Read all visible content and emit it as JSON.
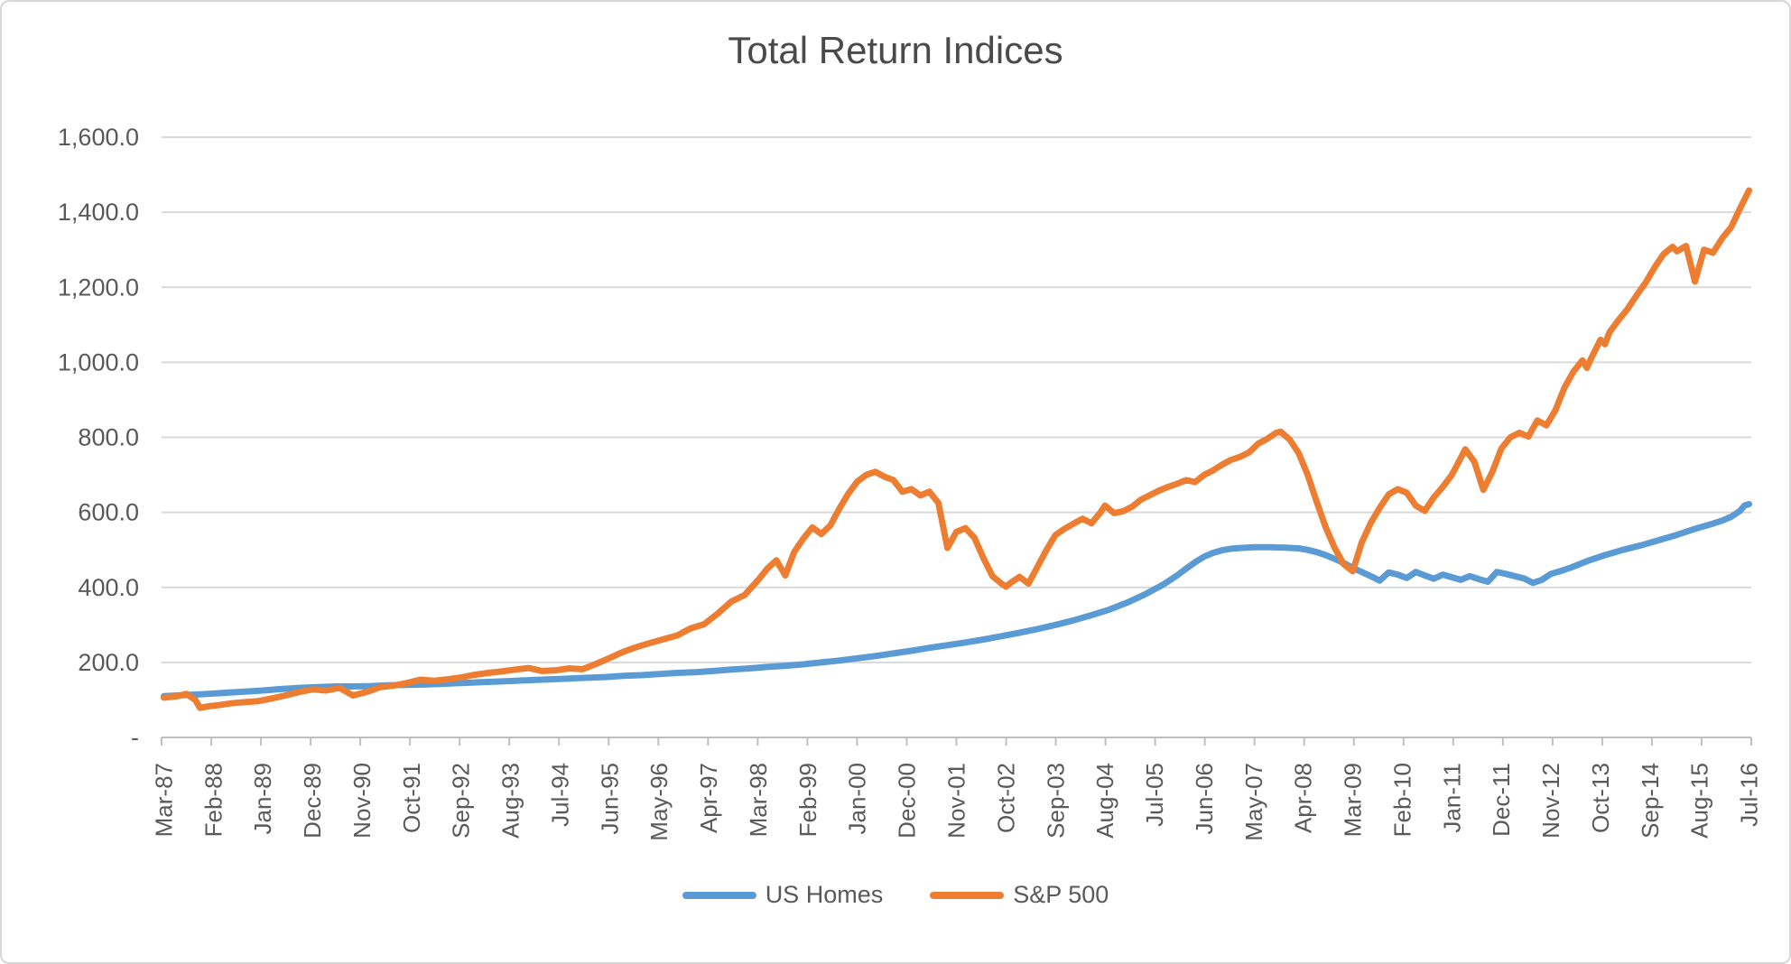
{
  "chart_data": {
    "type": "line",
    "title": "Total Return Indices",
    "legend_position": "bottom",
    "x_axis": {
      "unit": "months since Mar-1987",
      "months_total": 353,
      "tick_interval_months": 11,
      "tick_labels": [
        "Mar-87",
        "Feb-88",
        "Jan-89",
        "Dec-89",
        "Nov-90",
        "Oct-91",
        "Sep-92",
        "Aug-93",
        "Jul-94",
        "Jun-95",
        "May-96",
        "Apr-97",
        "Mar-98",
        "Feb-99",
        "Jan-00",
        "Dec-00",
        "Nov-01",
        "Oct-02",
        "Sep-03",
        "Aug-04",
        "Jul-05",
        "Jun-06",
        "May-07",
        "Apr-08",
        "Mar-09",
        "Feb-10",
        "Jan-11",
        "Dec-11",
        "Nov-12",
        "Oct-13",
        "Sep-14",
        "Aug-15",
        "Jul-16"
      ]
    },
    "y_axis": {
      "min": 0,
      "max": 1600,
      "gridline_step": 200,
      "gridlines": true,
      "tick_labels": [
        "-",
        "200.0",
        "400.0",
        "600.0",
        "800.0",
        "1,000.0",
        "1,200.0",
        "1,400.0",
        "1,600.0"
      ]
    },
    "series": [
      {
        "name": "US Homes",
        "color": "#5B9BD5",
        "points": [
          [
            0,
            110
          ],
          [
            5,
            113
          ],
          [
            8,
            115
          ],
          [
            11,
            117
          ],
          [
            15,
            120
          ],
          [
            18,
            122
          ],
          [
            22,
            125
          ],
          [
            26,
            129
          ],
          [
            30,
            132
          ],
          [
            34,
            134
          ],
          [
            38,
            136
          ],
          [
            42,
            136
          ],
          [
            46,
            137
          ],
          [
            50,
            139
          ],
          [
            54,
            140
          ],
          [
            58,
            141
          ],
          [
            62,
            143
          ],
          [
            66,
            145
          ],
          [
            70,
            147
          ],
          [
            74,
            149
          ],
          [
            78,
            151
          ],
          [
            82,
            153
          ],
          [
            86,
            155
          ],
          [
            90,
            157
          ],
          [
            94,
            159
          ],
          [
            98,
            161
          ],
          [
            102,
            164
          ],
          [
            106,
            166
          ],
          [
            110,
            169
          ],
          [
            114,
            172
          ],
          [
            118,
            174
          ],
          [
            122,
            177
          ],
          [
            126,
            181
          ],
          [
            130,
            184
          ],
          [
            134,
            188
          ],
          [
            138,
            191
          ],
          [
            142,
            195
          ],
          [
            146,
            200
          ],
          [
            150,
            205
          ],
          [
            154,
            211
          ],
          [
            158,
            217
          ],
          [
            162,
            224
          ],
          [
            166,
            231
          ],
          [
            170,
            239
          ],
          [
            174,
            246
          ],
          [
            178,
            253
          ],
          [
            182,
            261
          ],
          [
            186,
            270
          ],
          [
            190,
            279
          ],
          [
            194,
            289
          ],
          [
            198,
            300
          ],
          [
            202,
            312
          ],
          [
            206,
            326
          ],
          [
            210,
            341
          ],
          [
            214,
            360
          ],
          [
            218,
            382
          ],
          [
            222,
            408
          ],
          [
            225,
            432
          ],
          [
            227,
            450
          ],
          [
            229,
            467
          ],
          [
            231,
            482
          ],
          [
            233,
            492
          ],
          [
            235,
            499
          ],
          [
            237,
            503
          ],
          [
            239,
            505
          ],
          [
            242,
            507
          ],
          [
            246,
            507
          ],
          [
            249,
            506
          ],
          [
            252,
            504
          ],
          [
            254,
            500
          ],
          [
            256,
            494
          ],
          [
            258,
            486
          ],
          [
            260,
            476
          ],
          [
            262,
            465
          ],
          [
            264,
            452
          ],
          [
            266,
            441
          ],
          [
            268,
            430
          ],
          [
            270,
            418
          ],
          [
            272,
            440
          ],
          [
            274,
            434
          ],
          [
            276,
            425
          ],
          [
            278,
            441
          ],
          [
            280,
            432
          ],
          [
            282,
            423
          ],
          [
            284,
            434
          ],
          [
            286,
            427
          ],
          [
            288,
            420
          ],
          [
            290,
            430
          ],
          [
            292,
            422
          ],
          [
            294,
            415
          ],
          [
            296,
            441
          ],
          [
            298,
            436
          ],
          [
            300,
            430
          ],
          [
            302,
            424
          ],
          [
            304,
            412
          ],
          [
            306,
            420
          ],
          [
            308,
            436
          ],
          [
            310,
            443
          ],
          [
            312,
            451
          ],
          [
            314,
            460
          ],
          [
            316,
            470
          ],
          [
            318,
            478
          ],
          [
            320,
            486
          ],
          [
            322,
            493
          ],
          [
            324,
            500
          ],
          [
            326,
            506
          ],
          [
            328,
            512
          ],
          [
            330,
            519
          ],
          [
            332,
            526
          ],
          [
            334,
            533
          ],
          [
            336,
            540
          ],
          [
            338,
            548
          ],
          [
            340,
            556
          ],
          [
            342,
            563
          ],
          [
            344,
            570
          ],
          [
            346,
            578
          ],
          [
            348,
            588
          ],
          [
            350,
            604
          ],
          [
            351,
            618
          ],
          [
            352,
            622
          ]
        ]
      },
      {
        "name": "S&P 500",
        "color": "#ED7D31",
        "points": [
          [
            0,
            106
          ],
          [
            3,
            110
          ],
          [
            5,
            116
          ],
          [
            7,
            100
          ],
          [
            8,
            79
          ],
          [
            10,
            83
          ],
          [
            12,
            86
          ],
          [
            15,
            91
          ],
          [
            18,
            94
          ],
          [
            21,
            97
          ],
          [
            24,
            104
          ],
          [
            27,
            112
          ],
          [
            30,
            121
          ],
          [
            33,
            128
          ],
          [
            36,
            125
          ],
          [
            39,
            132
          ],
          [
            42,
            112
          ],
          [
            44,
            118
          ],
          [
            46,
            125
          ],
          [
            48,
            134
          ],
          [
            51,
            138
          ],
          [
            54,
            145
          ],
          [
            57,
            154
          ],
          [
            60,
            151
          ],
          [
            63,
            155
          ],
          [
            66,
            160
          ],
          [
            69,
            167
          ],
          [
            72,
            172
          ],
          [
            75,
            176
          ],
          [
            78,
            181
          ],
          [
            81,
            185
          ],
          [
            84,
            177
          ],
          [
            87,
            179
          ],
          [
            90,
            184
          ],
          [
            93,
            182
          ],
          [
            96,
            196
          ],
          [
            99,
            212
          ],
          [
            102,
            228
          ],
          [
            105,
            241
          ],
          [
            108,
            252
          ],
          [
            111,
            262
          ],
          [
            114,
            272
          ],
          [
            117,
            291
          ],
          [
            120,
            302
          ],
          [
            123,
            330
          ],
          [
            126,
            362
          ],
          [
            129,
            380
          ],
          [
            132,
            420
          ],
          [
            134,
            450
          ],
          [
            136,
            472
          ],
          [
            138,
            432
          ],
          [
            140,
            495
          ],
          [
            142,
            530
          ],
          [
            144,
            560
          ],
          [
            146,
            542
          ],
          [
            148,
            565
          ],
          [
            150,
            610
          ],
          [
            152,
            650
          ],
          [
            154,
            682
          ],
          [
            156,
            700
          ],
          [
            158,
            708
          ],
          [
            160,
            695
          ],
          [
            162,
            686
          ],
          [
            164,
            655
          ],
          [
            166,
            662
          ],
          [
            168,
            645
          ],
          [
            170,
            655
          ],
          [
            172,
            625
          ],
          [
            174,
            505
          ],
          [
            176,
            548
          ],
          [
            178,
            558
          ],
          [
            180,
            532
          ],
          [
            182,
            478
          ],
          [
            184,
            430
          ],
          [
            186,
            410
          ],
          [
            187,
            402
          ],
          [
            188,
            412
          ],
          [
            190,
            428
          ],
          [
            192,
            410
          ],
          [
            194,
            455
          ],
          [
            196,
            500
          ],
          [
            198,
            540
          ],
          [
            200,
            556
          ],
          [
            202,
            570
          ],
          [
            204,
            583
          ],
          [
            206,
            571
          ],
          [
            208,
            600
          ],
          [
            209,
            618
          ],
          [
            211,
            598
          ],
          [
            213,
            603
          ],
          [
            215,
            615
          ],
          [
            217,
            634
          ],
          [
            219,
            646
          ],
          [
            221,
            658
          ],
          [
            223,
            668
          ],
          [
            225,
            676
          ],
          [
            227,
            686
          ],
          [
            229,
            681
          ],
          [
            231,
            700
          ],
          [
            233,
            712
          ],
          [
            235,
            727
          ],
          [
            237,
            740
          ],
          [
            239,
            748
          ],
          [
            241,
            760
          ],
          [
            243,
            783
          ],
          [
            245,
            796
          ],
          [
            247,
            812
          ],
          [
            248,
            815
          ],
          [
            250,
            794
          ],
          [
            252,
            758
          ],
          [
            254,
            700
          ],
          [
            256,
            628
          ],
          [
            258,
            560
          ],
          [
            260,
            505
          ],
          [
            262,
            462
          ],
          [
            264,
            443
          ],
          [
            266,
            520
          ],
          [
            268,
            572
          ],
          [
            270,
            612
          ],
          [
            272,
            648
          ],
          [
            274,
            662
          ],
          [
            276,
            652
          ],
          [
            278,
            618
          ],
          [
            280,
            604
          ],
          [
            282,
            640
          ],
          [
            284,
            668
          ],
          [
            286,
            700
          ],
          [
            288,
            745
          ],
          [
            289,
            768
          ],
          [
            291,
            735
          ],
          [
            293,
            660
          ],
          [
            295,
            708
          ],
          [
            297,
            770
          ],
          [
            299,
            800
          ],
          [
            301,
            812
          ],
          [
            303,
            802
          ],
          [
            305,
            845
          ],
          [
            307,
            832
          ],
          [
            309,
            872
          ],
          [
            311,
            932
          ],
          [
            313,
            975
          ],
          [
            315,
            1005
          ],
          [
            316,
            985
          ],
          [
            317,
            1012
          ],
          [
            319,
            1060
          ],
          [
            320,
            1048
          ],
          [
            321,
            1080
          ],
          [
            323,
            1112
          ],
          [
            325,
            1142
          ],
          [
            327,
            1178
          ],
          [
            329,
            1212
          ],
          [
            331,
            1252
          ],
          [
            333,
            1288
          ],
          [
            335,
            1308
          ],
          [
            336,
            1296
          ],
          [
            338,
            1310
          ],
          [
            340,
            1215
          ],
          [
            342,
            1300
          ],
          [
            344,
            1292
          ],
          [
            346,
            1330
          ],
          [
            348,
            1360
          ],
          [
            350,
            1410
          ],
          [
            352,
            1458
          ]
        ]
      }
    ],
    "style": {
      "gridline_color": "#d9d9d9",
      "axis_line_color": "#bfbfbf",
      "axis_label_color": "#595959",
      "title_color": "#4a4a4a",
      "line_width": 7
    }
  }
}
